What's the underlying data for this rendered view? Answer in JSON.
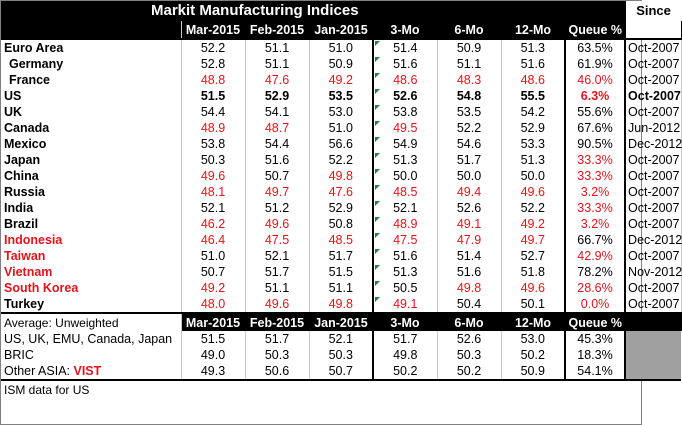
{
  "title": "Markit  Manufacturing Indices",
  "since_header": "Since",
  "columns": [
    "Mar-2015",
    "Feb-2015",
    "Jan-2015",
    "3-Mo",
    "6-Mo",
    "12-Mo",
    "Queue %"
  ],
  "colors": {
    "header_bg": "#000000",
    "red_text": "#e0141e",
    "marker_green": "#1a8a3a",
    "gray_fill": "#a0a0a0"
  },
  "rows": [
    {
      "country": "Euro Area",
      "style": "black",
      "indent": false,
      "vals": [
        "52.2",
        "51.1",
        "51.0",
        "51.4",
        "50.9",
        "51.3",
        "63.5%"
      ],
      "since": "Oct-2007"
    },
    {
      "country": "Germany",
      "style": "black",
      "indent": true,
      "vals": [
        "52.8",
        "51.1",
        "50.9",
        "51.6",
        "51.1",
        "51.6",
        "61.9%"
      ],
      "since": "Oct-2007"
    },
    {
      "country": "France",
      "style": "red-values",
      "indent": true,
      "vals": [
        "48.8",
        "47.6",
        "49.2",
        "48.6",
        "48.3",
        "48.6",
        "46.0%"
      ],
      "since": "Oct-2007"
    },
    {
      "country": "US",
      "style": "bold",
      "indent": false,
      "vals": [
        "51.5",
        "52.9",
        "53.5",
        "52.6",
        "54.8",
        "55.5",
        "6.3%"
      ],
      "since": "Oct-2007"
    },
    {
      "country": "UK",
      "style": "black",
      "indent": false,
      "vals": [
        "54.4",
        "54.1",
        "53.0",
        "53.8",
        "53.5",
        "54.2",
        "55.6%"
      ],
      "since": "Oct-2007"
    },
    {
      "country": "Canada",
      "style": "mixed",
      "indent": false,
      "vals": [
        "48.9",
        "48.7",
        "51.0",
        "49.5",
        "52.2",
        "52.9",
        "67.6%"
      ],
      "since": "Jun-2012"
    },
    {
      "country": "Mexico",
      "style": "black",
      "indent": false,
      "vals": [
        "53.8",
        "54.4",
        "56.6",
        "54.9",
        "54.6",
        "53.3",
        "90.5%"
      ],
      "since": "Dec-2012"
    },
    {
      "country": "Japan",
      "style": "black",
      "indent": false,
      "vals": [
        "50.3",
        "51.6",
        "52.2",
        "51.3",
        "51.7",
        "51.3",
        "33.3%"
      ],
      "since": "Oct-2007"
    },
    {
      "country": "China",
      "style": "mixed",
      "indent": false,
      "vals": [
        "49.6",
        "50.7",
        "49.8",
        "50.0",
        "50.0",
        "50.0",
        "33.3%"
      ],
      "since": "Oct-2007"
    },
    {
      "country": "Russia",
      "style": "red-values",
      "indent": false,
      "vals": [
        "48.1",
        "49.7",
        "47.6",
        "48.5",
        "49.4",
        "49.6",
        "3.2%"
      ],
      "since": "Oct-2007"
    },
    {
      "country": "India",
      "style": "black",
      "indent": false,
      "vals": [
        "52.1",
        "51.2",
        "52.9",
        "52.1",
        "52.6",
        "52.2",
        "33.3%"
      ],
      "since": "Oct-2007"
    },
    {
      "country": "Brazil",
      "style": "red-values",
      "indent": false,
      "vals": [
        "46.2",
        "49.6",
        "50.8",
        "48.9",
        "49.1",
        "49.2",
        "3.2%"
      ],
      "since": "Oct-2007"
    },
    {
      "country": "Indonesia",
      "style": "red-all",
      "indent": false,
      "vals": [
        "46.4",
        "47.5",
        "48.5",
        "47.5",
        "47.9",
        "49.7",
        "66.7%"
      ],
      "since": "Dec-2012"
    },
    {
      "country": "Taiwan",
      "style": "red-country",
      "indent": false,
      "vals": [
        "51.0",
        "52.1",
        "51.7",
        "51.6",
        "51.4",
        "52.7",
        "42.9%"
      ],
      "since": "Oct-2007"
    },
    {
      "country": "Vietnam",
      "style": "red-country",
      "indent": false,
      "vals": [
        "50.7",
        "51.7",
        "51.5",
        "51.3",
        "51.6",
        "51.8",
        "78.2%"
      ],
      "since": "Nov-2012"
    },
    {
      "country": "South Korea",
      "style": "red-all",
      "indent": false,
      "vals": [
        "49.2",
        "51.1",
        "51.1",
        "50.5",
        "49.8",
        "49.6",
        "28.6%"
      ],
      "since": "Oct-2007"
    },
    {
      "country": "Turkey",
      "style": "red-values",
      "indent": false,
      "vals": [
        "48.0",
        "49.6",
        "49.8",
        "49.1",
        "50.4",
        "50.1",
        "0.0%"
      ],
      "since": "Oct-2007"
    }
  ],
  "avg_header": "Average: Unweighted",
  "avg_rows": [
    {
      "label": "US, UK, EMU, Canada, Japan",
      "vals": [
        "51.5",
        "51.7",
        "52.1",
        "51.7",
        "52.6",
        "53.0",
        "45.3%"
      ]
    },
    {
      "label": "BRIC",
      "vals": [
        "49.0",
        "50.3",
        "50.3",
        "49.8",
        "50.3",
        "50.2",
        "18.3%"
      ]
    },
    {
      "label_prefix": "Other ASIA: ",
      "label_suffix": "VIST",
      "vals": [
        "49.3",
        "50.6",
        "50.7",
        "50.2",
        "50.2",
        "50.9",
        "54.1%"
      ]
    }
  ],
  "note": "ISM data for US"
}
